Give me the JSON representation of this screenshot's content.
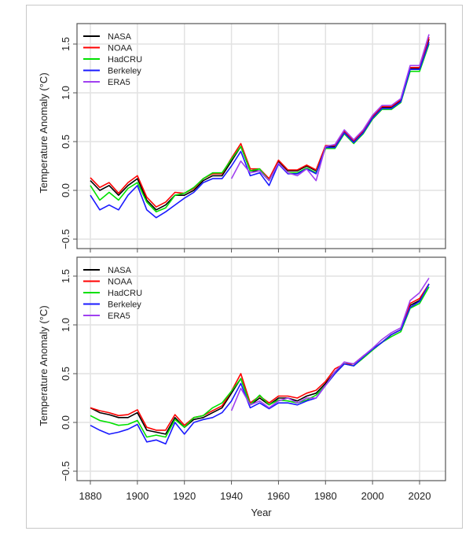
{
  "chart_data": [
    {
      "type": "line",
      "panel": "top",
      "xlabel": "",
      "ylabel": "Temperature Anomaly (°C)",
      "xlim": [
        1875,
        2030
      ],
      "ylim": [
        -0.6,
        1.65
      ],
      "yticks": [
        "−0.5",
        "0.0",
        "0.5",
        "1.0",
        "1.5"
      ],
      "ytick_values": [
        -0.5,
        0,
        0.5,
        1.0,
        1.5
      ],
      "xtick_values": [
        1880,
        1900,
        1920,
        1940,
        1960,
        1980,
        2000,
        2020
      ],
      "grid": true,
      "legend_position": "top-left",
      "x": [
        1880,
        1884,
        1888,
        1892,
        1896,
        1900,
        1904,
        1908,
        1912,
        1916,
        1920,
        1924,
        1928,
        1932,
        1936,
        1940,
        1944,
        1948,
        1952,
        1956,
        1960,
        1964,
        1968,
        1972,
        1976,
        1980,
        1984,
        1988,
        1992,
        1996,
        2000,
        2004,
        2008,
        2012,
        2016,
        2020,
        2024
      ],
      "series": [
        {
          "name": "NASA",
          "color": "#000000",
          "values": [
            0.1,
            0.0,
            0.05,
            -0.05,
            0.05,
            0.12,
            -0.1,
            -0.2,
            -0.15,
            -0.05,
            -0.05,
            0.0,
            0.1,
            0.15,
            0.15,
            0.3,
            0.45,
            0.2,
            0.2,
            0.1,
            0.3,
            0.2,
            0.2,
            0.25,
            0.2,
            0.45,
            0.45,
            0.6,
            0.5,
            0.6,
            0.75,
            0.85,
            0.85,
            0.92,
            1.25,
            1.25,
            1.55
          ]
        },
        {
          "name": "NOAA",
          "color": "#ff0000",
          "values": [
            0.13,
            0.03,
            0.08,
            -0.03,
            0.08,
            0.15,
            -0.07,
            -0.17,
            -0.12,
            -0.02,
            -0.03,
            0.02,
            0.12,
            0.17,
            0.17,
            0.33,
            0.48,
            0.22,
            0.22,
            0.12,
            0.31,
            0.21,
            0.21,
            0.26,
            0.21,
            0.46,
            0.46,
            0.61,
            0.51,
            0.61,
            0.76,
            0.86,
            0.86,
            0.93,
            1.26,
            1.26,
            1.57
          ]
        },
        {
          "name": "HadCRU",
          "color": "#00e000",
          "values": [
            0.05,
            -0.1,
            -0.02,
            -0.1,
            0.02,
            0.08,
            -0.12,
            -0.22,
            -0.18,
            -0.05,
            -0.03,
            0.03,
            0.12,
            0.18,
            0.18,
            0.32,
            0.45,
            0.2,
            0.22,
            0.1,
            0.28,
            0.18,
            0.18,
            0.23,
            0.18,
            0.43,
            0.43,
            0.58,
            0.48,
            0.58,
            0.73,
            0.83,
            0.83,
            0.9,
            1.22,
            1.22,
            1.5
          ]
        },
        {
          "name": "Berkeley",
          "color": "#1a1aff",
          "values": [
            -0.05,
            -0.2,
            -0.15,
            -0.2,
            -0.05,
            0.05,
            -0.2,
            -0.28,
            -0.22,
            -0.15,
            -0.08,
            -0.02,
            0.08,
            0.12,
            0.12,
            0.25,
            0.4,
            0.15,
            0.18,
            0.05,
            0.27,
            0.17,
            0.17,
            0.22,
            0.17,
            0.44,
            0.44,
            0.59,
            0.49,
            0.59,
            0.74,
            0.84,
            0.84,
            0.91,
            1.24,
            1.24,
            1.52
          ]
        },
        {
          "name": "ERA5",
          "color": "#a040f0",
          "values": [
            null,
            null,
            null,
            null,
            null,
            null,
            null,
            null,
            null,
            null,
            null,
            null,
            null,
            null,
            null,
            0.12,
            0.3,
            0.18,
            0.2,
            0.1,
            0.28,
            0.18,
            0.15,
            0.22,
            0.1,
            0.45,
            0.47,
            0.62,
            0.52,
            0.62,
            0.77,
            0.87,
            0.87,
            0.94,
            1.28,
            1.28,
            1.6
          ]
        }
      ]
    },
    {
      "type": "line",
      "panel": "bottom",
      "xlabel": "Year",
      "ylabel": "Temperature Anomaly (°C)",
      "xlim": [
        1875,
        2030
      ],
      "ylim": [
        -0.6,
        1.65
      ],
      "yticks": [
        "−0.5",
        "0.0",
        "0.5",
        "1.0",
        "1.5"
      ],
      "ytick_values": [
        -0.5,
        0,
        0.5,
        1.0,
        1.5
      ],
      "xticks": [
        "1880",
        "1900",
        "1920",
        "1940",
        "1960",
        "1980",
        "2000",
        "2020"
      ],
      "xtick_values": [
        1880,
        1900,
        1920,
        1940,
        1960,
        1980,
        2000,
        2020
      ],
      "grid": true,
      "legend_position": "top-left",
      "x": [
        1880,
        1884,
        1888,
        1892,
        1896,
        1900,
        1904,
        1908,
        1912,
        1916,
        1920,
        1924,
        1928,
        1932,
        1936,
        1940,
        1944,
        1948,
        1952,
        1956,
        1960,
        1964,
        1968,
        1972,
        1976,
        1980,
        1984,
        1988,
        1992,
        1996,
        2000,
        2004,
        2008,
        2012,
        2016,
        2020,
        2024
      ],
      "series": [
        {
          "name": "NASA",
          "color": "#000000",
          "values": [
            0.15,
            0.1,
            0.08,
            0.05,
            0.05,
            0.1,
            -0.08,
            -0.1,
            -0.12,
            0.05,
            -0.05,
            0.03,
            0.05,
            0.1,
            0.15,
            0.3,
            0.45,
            0.18,
            0.25,
            0.18,
            0.25,
            0.25,
            0.22,
            0.27,
            0.3,
            0.4,
            0.52,
            0.6,
            0.6,
            0.68,
            0.75,
            0.82,
            0.9,
            0.95,
            1.2,
            1.25,
            1.42
          ]
        },
        {
          "name": "NOAA",
          "color": "#ff0000",
          "values": [
            0.15,
            0.12,
            0.1,
            0.07,
            0.08,
            0.13,
            -0.05,
            -0.08,
            -0.08,
            0.08,
            -0.03,
            0.05,
            0.07,
            0.12,
            0.17,
            0.32,
            0.5,
            0.2,
            0.27,
            0.2,
            0.27,
            0.27,
            0.25,
            0.3,
            0.33,
            0.42,
            0.55,
            0.6,
            0.6,
            0.68,
            0.75,
            0.82,
            0.9,
            0.95,
            1.22,
            1.27,
            1.42
          ]
        },
        {
          "name": "HadCRU",
          "color": "#00e000",
          "values": [
            0.07,
            0.02,
            0.0,
            -0.03,
            -0.02,
            0.02,
            -0.15,
            -0.13,
            -0.15,
            0.03,
            -0.05,
            0.05,
            0.07,
            0.15,
            0.2,
            0.32,
            0.45,
            0.18,
            0.28,
            0.18,
            0.23,
            0.22,
            0.2,
            0.23,
            0.28,
            0.38,
            0.5,
            0.6,
            0.58,
            0.66,
            0.74,
            0.82,
            0.88,
            0.93,
            1.17,
            1.22,
            1.39
          ]
        },
        {
          "name": "Berkeley",
          "color": "#1a1aff",
          "values": [
            -0.03,
            -0.08,
            -0.12,
            -0.1,
            -0.07,
            -0.02,
            -0.2,
            -0.18,
            -0.22,
            0.0,
            -0.12,
            0.0,
            0.03,
            0.05,
            0.1,
            0.22,
            0.4,
            0.15,
            0.2,
            0.14,
            0.2,
            0.2,
            0.18,
            0.22,
            0.25,
            0.38,
            0.5,
            0.6,
            0.58,
            0.67,
            0.75,
            0.82,
            0.9,
            0.95,
            1.18,
            1.24,
            1.42
          ]
        },
        {
          "name": "ERA5",
          "color": "#a040f0",
          "values": [
            null,
            null,
            null,
            null,
            null,
            null,
            null,
            null,
            null,
            null,
            null,
            null,
            null,
            null,
            null,
            0.12,
            0.35,
            0.18,
            0.22,
            0.15,
            0.22,
            0.25,
            0.2,
            0.25,
            0.25,
            0.38,
            0.52,
            0.62,
            0.6,
            0.68,
            0.76,
            0.85,
            0.92,
            0.97,
            1.25,
            1.33,
            1.48
          ]
        }
      ]
    }
  ]
}
